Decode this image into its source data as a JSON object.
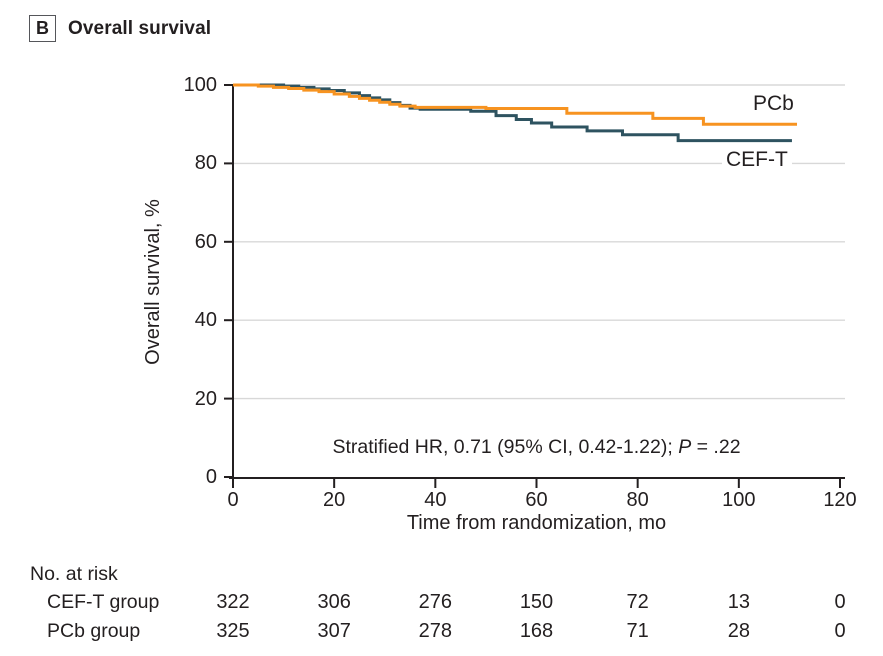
{
  "panel": {
    "letter": "B",
    "title": "Overall survival"
  },
  "colors": {
    "pcb": "#F79320",
    "ceft": "#2E5360",
    "grid": "#D8D8D8",
    "axis": "#231F20",
    "text": "#231F20"
  },
  "chart_data": {
    "type": "line",
    "variant": "kaplan_meier_step",
    "title": "Overall survival",
    "xlabel": "Time from randomization, mo",
    "ylabel": "Overall survival, %",
    "xlim": [
      0,
      120
    ],
    "ylim": [
      0,
      100
    ],
    "xticks": [
      0,
      20,
      40,
      60,
      80,
      100,
      120
    ],
    "yticks": [
      0,
      20,
      40,
      60,
      80,
      100
    ],
    "grid": "horizontal gridlines at y ticks",
    "legend_position": "labels at right end of curves",
    "annotation": {
      "prefix": "Stratified HR, 0.71 (95% CI, 0.42-1.22); ",
      "p_symbol": "P",
      "p_value": " = .22"
    },
    "series": [
      {
        "name": "CEF-T",
        "color_key": "ceft",
        "start": [
          0,
          100
        ],
        "steps": [
          [
            10,
            99.7
          ],
          [
            13,
            99.4
          ],
          [
            16,
            99.0
          ],
          [
            19,
            98.6
          ],
          [
            22,
            98.0
          ],
          [
            25,
            97.3
          ],
          [
            27,
            96.7
          ],
          [
            29,
            96.2
          ],
          [
            31,
            95.5
          ],
          [
            33,
            94.8
          ],
          [
            35,
            94.1
          ],
          [
            37,
            93.8
          ],
          [
            47,
            93.3
          ],
          [
            52,
            92.2
          ],
          [
            56,
            91.2
          ],
          [
            59,
            90.3
          ],
          [
            63,
            89.3
          ],
          [
            70,
            88.3
          ],
          [
            77,
            87.3
          ],
          [
            88,
            85.8
          ]
        ],
        "end_x": 110.5,
        "final_value": 85.8
      },
      {
        "name": "PCb",
        "color_key": "pcb",
        "start": [
          0,
          100
        ],
        "steps": [
          [
            5,
            99.7
          ],
          [
            8,
            99.4
          ],
          [
            11,
            99.1
          ],
          [
            14,
            98.7
          ],
          [
            17,
            98.3
          ],
          [
            20,
            97.7
          ],
          [
            23,
            97.1
          ],
          [
            25,
            96.6
          ],
          [
            27,
            96.1
          ],
          [
            29,
            95.6
          ],
          [
            31,
            95.1
          ],
          [
            33,
            94.6
          ],
          [
            36,
            94.3
          ],
          [
            50,
            94.0
          ],
          [
            66,
            92.8
          ],
          [
            83,
            91.5
          ],
          [
            93,
            90.0
          ]
        ],
        "end_x": 111.5,
        "final_value": 90.0
      }
    ]
  },
  "risk_table": {
    "title": "No. at risk",
    "time_points": [
      0,
      20,
      40,
      60,
      80,
      100,
      120
    ],
    "rows": [
      {
        "label": "CEF-T group",
        "values": [
          "322",
          "306",
          "276",
          "150",
          "72",
          "13",
          "0"
        ]
      },
      {
        "label": "PCb group",
        "values": [
          "325",
          "307",
          "278",
          "168",
          "71",
          "28",
          "0"
        ]
      }
    ]
  }
}
